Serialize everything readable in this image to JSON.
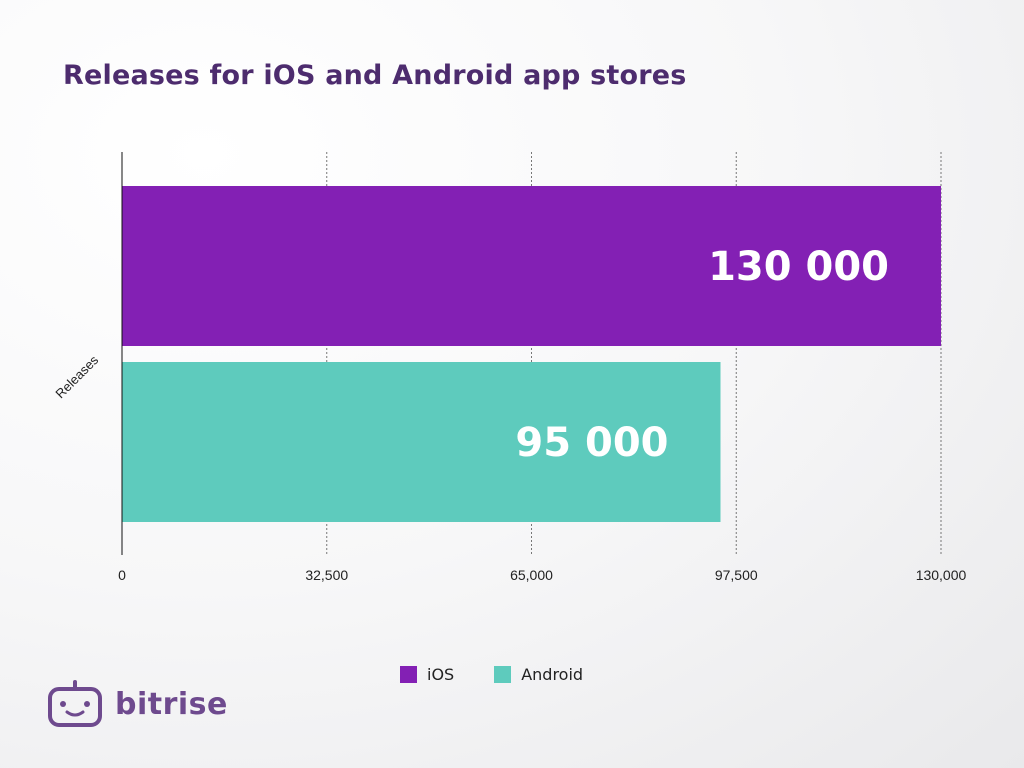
{
  "title": "Releases for iOS and Android app stores",
  "chart_data": {
    "type": "bar",
    "orientation": "horizontal",
    "categories": [
      "Releases"
    ],
    "ylabel": "Releases",
    "xlim": [
      0,
      130000
    ],
    "x_ticks": [
      "0",
      "32,500",
      "65,000",
      "97,500",
      "130,000"
    ],
    "grid": "vertical dashed",
    "series": [
      {
        "name": "iOS",
        "values": [
          130000
        ],
        "label": "130 000",
        "color": "#8320b4"
      },
      {
        "name": "Android",
        "values": [
          95000
        ],
        "label": "95 000",
        "color": "#5ecbbd"
      }
    ],
    "legend_position": "bottom"
  },
  "legend": {
    "ios": "iOS",
    "android": "Android"
  },
  "brand": {
    "name": "bitrise",
    "logo_icon": "bitrise-robot-icon",
    "color": "#6e4a8e"
  }
}
